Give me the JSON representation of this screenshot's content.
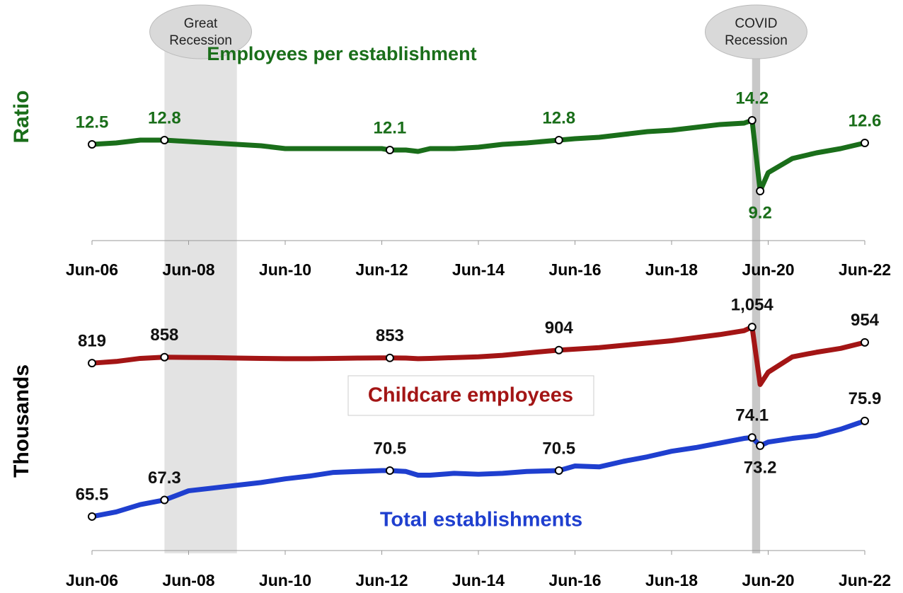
{
  "chart_data": [
    {
      "type": "line",
      "title": "Employees per establishment",
      "y_label": "Ratio",
      "x": [
        "Jun-06",
        "Dec-06",
        "Jun-07",
        "Dec-07",
        "Jun-08",
        "Dec-08",
        "Jun-09",
        "Dec-09",
        "Jun-10",
        "Dec-10",
        "Jun-11",
        "Dec-11",
        "Jun-12",
        "Aug-12",
        "Dec-12",
        "Mar-13",
        "Jun-13",
        "Dec-13",
        "Jun-14",
        "Dec-14",
        "Jun-15",
        "Feb-16",
        "Jun-16",
        "Dec-16",
        "Jun-17",
        "Dec-17",
        "Jun-18",
        "Dec-18",
        "Jun-19",
        "Dec-19",
        "Feb-20",
        "Apr-20",
        "Jun-20",
        "Dec-20",
        "Jun-21",
        "Dec-21",
        "Jun-22"
      ],
      "series": [
        {
          "name": "Employees per establishment",
          "color": "#1a6e1a",
          "values": [
            12.5,
            12.6,
            12.8,
            12.8,
            12.7,
            12.6,
            12.5,
            12.4,
            12.2,
            12.2,
            12.2,
            12.2,
            12.2,
            12.1,
            12.1,
            12.0,
            12.2,
            12.2,
            12.3,
            12.5,
            12.6,
            12.8,
            12.9,
            13.0,
            13.2,
            13.4,
            13.5,
            13.7,
            13.9,
            14.0,
            14.2,
            9.2,
            10.5,
            11.5,
            11.9,
            12.2,
            12.6
          ],
          "value_labels": [
            "12.5",
            null,
            null,
            "12.8",
            null,
            null,
            null,
            null,
            null,
            null,
            null,
            null,
            null,
            "12.1",
            null,
            null,
            null,
            null,
            null,
            null,
            null,
            "12.8",
            null,
            null,
            null,
            null,
            null,
            null,
            null,
            null,
            "14.2",
            "9.2",
            null,
            null,
            null,
            null,
            "12.6"
          ]
        }
      ],
      "ylim": [
        5.7,
        18.2
      ],
      "xticks": [
        "Jun-06",
        "Jun-08",
        "Jun-10",
        "Jun-12",
        "Jun-14",
        "Jun-16",
        "Jun-18",
        "Jun-20",
        "Jun-22"
      ],
      "shaded_periods": [
        {
          "label_lines": [
            "Great",
            "Recession"
          ],
          "start": "Dec-07",
          "end": "Jun-09",
          "color": "#e3e3e3"
        },
        {
          "label_lines": [
            "COVID",
            "Recession"
          ],
          "start": "Feb-20",
          "end": "Apr-20",
          "color": "#c8c8c8"
        }
      ]
    },
    {
      "type": "line",
      "y_label": "Thousands",
      "x": [
        "Jun-06",
        "Dec-06",
        "Jun-07",
        "Dec-07",
        "Jun-08",
        "Dec-08",
        "Jun-09",
        "Dec-09",
        "Jun-10",
        "Dec-10",
        "Jun-11",
        "Dec-11",
        "Jun-12",
        "Aug-12",
        "Dec-12",
        "Mar-13",
        "Jun-13",
        "Dec-13",
        "Jun-14",
        "Dec-14",
        "Jun-15",
        "Feb-16",
        "Jun-16",
        "Dec-16",
        "Jun-17",
        "Dec-17",
        "Jun-18",
        "Dec-18",
        "Jun-19",
        "Dec-19",
        "Feb-20",
        "Apr-20",
        "Jun-20",
        "Dec-20",
        "Jun-21",
        "Dec-21",
        "Jun-22"
      ],
      "series": [
        {
          "name": "Childcare employees",
          "color": "#a31515",
          "values": [
            819,
            830,
            850,
            858,
            856,
            855,
            852,
            850,
            848,
            848,
            850,
            852,
            853,
            853,
            852,
            848,
            850,
            855,
            860,
            870,
            885,
            904,
            910,
            920,
            935,
            950,
            965,
            985,
            1005,
            1030,
            1054,
            680,
            760,
            860,
            890,
            915,
            954
          ],
          "value_labels": [
            "819",
            null,
            null,
            "858",
            null,
            null,
            null,
            null,
            null,
            null,
            null,
            null,
            null,
            "853",
            null,
            null,
            null,
            null,
            null,
            null,
            null,
            "904",
            null,
            null,
            null,
            null,
            null,
            null,
            null,
            null,
            "1,054",
            null,
            null,
            null,
            null,
            null,
            "954"
          ]
        },
        {
          "name": "Total establishments",
          "color": "#1f3fcf",
          "axis": "y2",
          "values": [
            65.5,
            66.0,
            66.8,
            67.3,
            68.3,
            68.6,
            68.9,
            69.2,
            69.6,
            69.9,
            70.3,
            70.4,
            70.5,
            70.5,
            70.4,
            70.0,
            70.0,
            70.2,
            70.1,
            70.2,
            70.4,
            70.5,
            71.0,
            70.9,
            71.5,
            72.0,
            72.6,
            73.0,
            73.5,
            74.0,
            74.1,
            73.2,
            73.6,
            74.0,
            74.3,
            75.0,
            75.9
          ],
          "value_labels": [
            "65.5",
            null,
            null,
            "67.3",
            null,
            null,
            null,
            null,
            null,
            null,
            null,
            null,
            null,
            "70.5",
            null,
            null,
            null,
            null,
            null,
            null,
            null,
            "70.5",
            null,
            null,
            null,
            null,
            null,
            null,
            null,
            null,
            "74.1",
            "73.2",
            null,
            null,
            null,
            null,
            "75.9"
          ]
        }
      ],
      "ylim": [
        -400,
        1340
      ],
      "y2lim": [
        61.8,
        90.9
      ],
      "xticks": [
        "Jun-06",
        "Jun-08",
        "Jun-10",
        "Jun-12",
        "Jun-14",
        "Jun-16",
        "Jun-18",
        "Jun-20",
        "Jun-22"
      ]
    }
  ]
}
